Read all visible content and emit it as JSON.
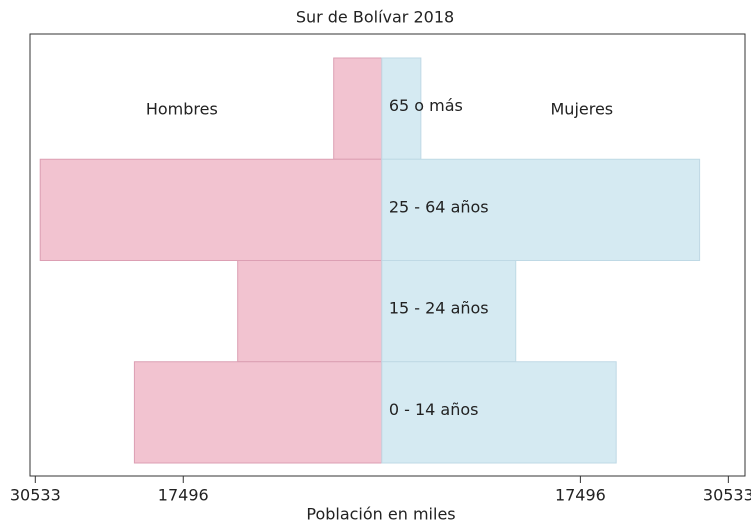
{
  "chart_data": {
    "type": "pyramid",
    "title": "Sur de Bolívar 2018",
    "x_label": "Población en miles",
    "categories": [
      "65 o más",
      "25 - 64 años",
      "15 - 24 años",
      "0 - 14 años"
    ],
    "series": [
      {
        "name": "Hombres",
        "color": "#f2c3d0",
        "values": [
          -4240,
          -30100,
          -12700,
          -21800
        ]
      },
      {
        "name": "Mujeres",
        "color": "#d5eaf2",
        "values": [
          3440,
          28000,
          11800,
          20650
        ]
      }
    ],
    "xlim": [
      -31000,
      32000
    ],
    "xticks": [
      {
        "value": -30533,
        "label": "30533"
      },
      {
        "value": -17496,
        "label": "17496"
      },
      {
        "value": 17496,
        "label": "17496"
      },
      {
        "value": 30533,
        "label": "30533"
      }
    ]
  }
}
